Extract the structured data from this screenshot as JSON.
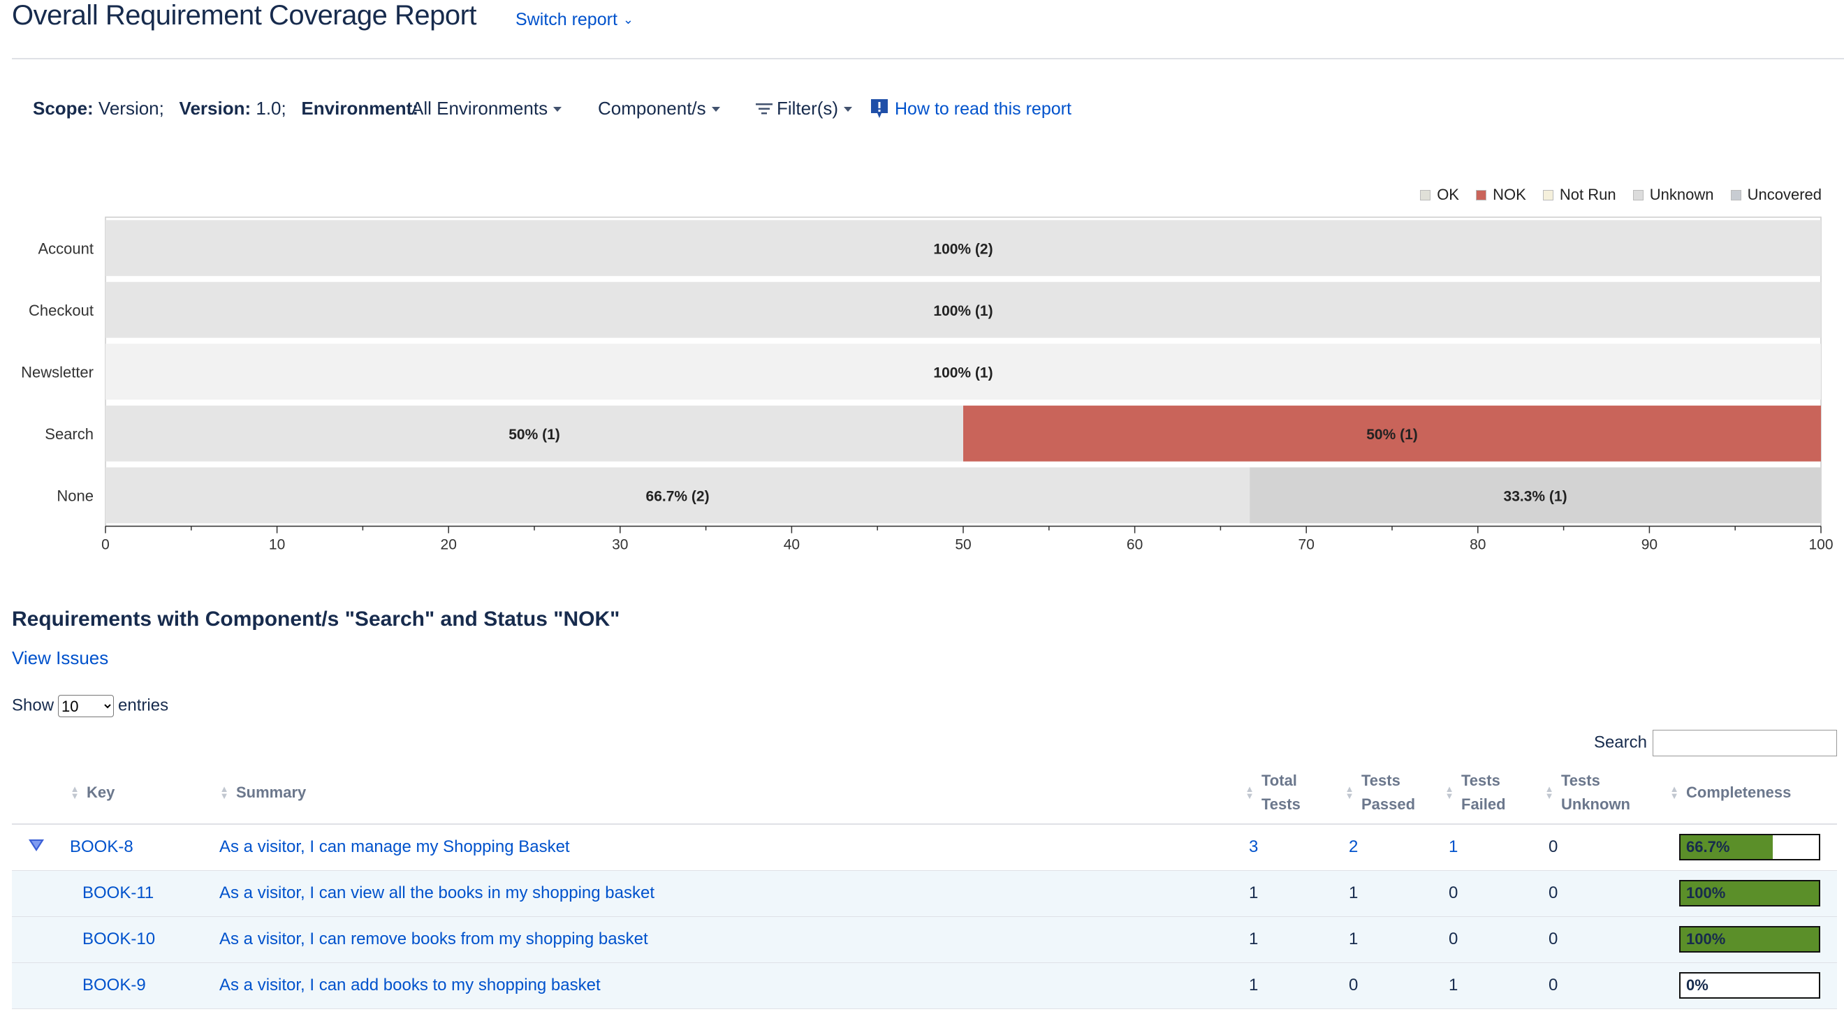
{
  "header": {
    "title": "Overall Requirement Coverage Report",
    "switch_report": "Switch report"
  },
  "scope": {
    "scope_label": "Scope:",
    "scope_value": "Version;",
    "version_label": "Version:",
    "version_value": "1.0;",
    "environment_label": "Environment:",
    "environment_value": "All Environments",
    "components": "Component/s",
    "filters": "Filter(s)",
    "help": "How to read this report"
  },
  "legend": [
    {
      "label": "OK",
      "color": "#e0e0d8"
    },
    {
      "label": "NOK",
      "color": "#c9645a"
    },
    {
      "label": "Not Run",
      "color": "#f5f0dc"
    },
    {
      "label": "Unknown",
      "color": "#dcdcdc"
    },
    {
      "label": "Uncovered",
      "color": "#c8ccd2"
    }
  ],
  "chart_data": {
    "type": "bar",
    "orientation": "horizontal",
    "stacked": true,
    "categories": [
      "Account",
      "Checkout",
      "Newsletter",
      "Search",
      "None"
    ],
    "segments": [
      [
        {
          "value": 100,
          "label": "100% (2)",
          "color": "#e5e5e5"
        }
      ],
      [
        {
          "value": 100,
          "label": "100% (1)",
          "color": "#e5e5e5"
        }
      ],
      [
        {
          "value": 100,
          "label": "100% (1)",
          "color": "#f2f2f2"
        }
      ],
      [
        {
          "value": 50,
          "label": "50% (1)",
          "color": "#e5e5e5"
        },
        {
          "value": 50,
          "label": "50% (1)",
          "color": "#c9645a"
        }
      ],
      [
        {
          "value": 66.7,
          "label": "66.7% (2)",
          "color": "#e5e5e5"
        },
        {
          "value": 33.3,
          "label": "33.3% (1)",
          "color": "#d3d3d3"
        }
      ]
    ],
    "xlim": [
      0,
      100
    ],
    "xticks": [
      0,
      10,
      20,
      30,
      40,
      50,
      60,
      70,
      80,
      90,
      100
    ],
    "legend_position": "top-right",
    "grid": false
  },
  "section": {
    "title": "Requirements with Component/s \"Search\" and Status \"NOK\"",
    "view_issues": "View Issues",
    "show_label": "Show",
    "show_value": "10",
    "entries_label": "entries",
    "search_label": "Search"
  },
  "table": {
    "columns": [
      {
        "line1": "Key",
        "line2": ""
      },
      {
        "line1": "Summary",
        "line2": ""
      },
      {
        "line1": "Total",
        "line2": "Tests"
      },
      {
        "line1": "Tests",
        "line2": "Passed"
      },
      {
        "line1": "Tests",
        "line2": "Failed"
      },
      {
        "line1": "Tests",
        "line2": "Unknown"
      },
      {
        "line1": "Completeness",
        "line2": ""
      }
    ],
    "rows": [
      {
        "key": "BOOK-8",
        "summary": "As a visitor, I can manage my Shopping Basket",
        "total": "3",
        "passed": "2",
        "failed": "1",
        "unknown": "0",
        "completeness": "66.7%",
        "fraction": 0.667,
        "parent": true
      },
      {
        "key": "BOOK-11",
        "summary": "As a visitor, I can view all the books in my shopping basket",
        "total": "1",
        "passed": "1",
        "failed": "0",
        "unknown": "0",
        "completeness": "100%",
        "fraction": 1.0,
        "parent": false
      },
      {
        "key": "BOOK-10",
        "summary": "As a visitor, I can remove books from my shopping basket",
        "total": "1",
        "passed": "1",
        "failed": "0",
        "unknown": "0",
        "completeness": "100%",
        "fraction": 1.0,
        "parent": false
      },
      {
        "key": "BOOK-9",
        "summary": "As a visitor, I can add books to my shopping basket",
        "total": "1",
        "passed": "0",
        "failed": "1",
        "unknown": "0",
        "completeness": "0%",
        "fraction": 0.0,
        "parent": false
      }
    ]
  }
}
